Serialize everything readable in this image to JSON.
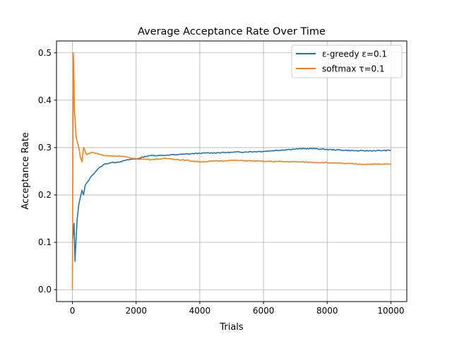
{
  "chart_data": {
    "type": "line",
    "title": "Average Acceptance Rate Over Time",
    "xlabel": "Trials",
    "ylabel": "Acceptance Rate",
    "xlim": [
      -500,
      10500
    ],
    "ylim": [
      -0.025,
      0.525
    ],
    "xticks": [
      0,
      2000,
      4000,
      6000,
      8000,
      10000
    ],
    "yticks": [
      0.0,
      0.1,
      0.2,
      0.3,
      0.4,
      0.5
    ],
    "xtick_labels": [
      "0",
      "2000",
      "4000",
      "6000",
      "8000",
      "10000"
    ],
    "ytick_labels": [
      "0.0",
      "0.1",
      "0.2",
      "0.3",
      "0.4",
      "0.5"
    ],
    "grid": true,
    "legend_placement": "upper-right",
    "series": [
      {
        "name": "ε-greedy ε=0.1",
        "color": "#1f77b4",
        "points": [
          [
            0,
            0.1
          ],
          [
            50,
            0.14
          ],
          [
            80,
            0.06
          ],
          [
            100,
            0.09
          ],
          [
            150,
            0.15
          ],
          [
            200,
            0.18
          ],
          [
            300,
            0.21
          ],
          [
            350,
            0.2
          ],
          [
            400,
            0.22
          ],
          [
            600,
            0.24
          ],
          [
            800,
            0.255
          ],
          [
            1000,
            0.265
          ],
          [
            1200,
            0.268
          ],
          [
            1500,
            0.27
          ],
          [
            1800,
            0.275
          ],
          [
            2000,
            0.276
          ],
          [
            2400,
            0.283
          ],
          [
            3000,
            0.284
          ],
          [
            3500,
            0.286
          ],
          [
            4000,
            0.288
          ],
          [
            5000,
            0.29
          ],
          [
            6000,
            0.292
          ],
          [
            7000,
            0.297
          ],
          [
            7500,
            0.298
          ],
          [
            8000,
            0.296
          ],
          [
            9000,
            0.293
          ],
          [
            10000,
            0.294
          ]
        ]
      },
      {
        "name": "softmax τ=0.1",
        "color": "#ff7f0e",
        "points": [
          [
            0,
            0
          ],
          [
            20,
            0.33
          ],
          [
            30,
            0.5
          ],
          [
            50,
            0.44
          ],
          [
            60,
            0.38
          ],
          [
            80,
            0.36
          ],
          [
            120,
            0.32
          ],
          [
            200,
            0.3
          ],
          [
            250,
            0.28
          ],
          [
            300,
            0.27
          ],
          [
            350,
            0.3
          ],
          [
            450,
            0.285
          ],
          [
            600,
            0.29
          ],
          [
            800,
            0.287
          ],
          [
            1000,
            0.283
          ],
          [
            1500,
            0.282
          ],
          [
            2000,
            0.276
          ],
          [
            2500,
            0.275
          ],
          [
            3000,
            0.277
          ],
          [
            4000,
            0.27
          ],
          [
            5000,
            0.273
          ],
          [
            6000,
            0.271
          ],
          [
            7000,
            0.27
          ],
          [
            8000,
            0.268
          ],
          [
            9000,
            0.265
          ],
          [
            10000,
            0.265
          ]
        ]
      }
    ]
  }
}
